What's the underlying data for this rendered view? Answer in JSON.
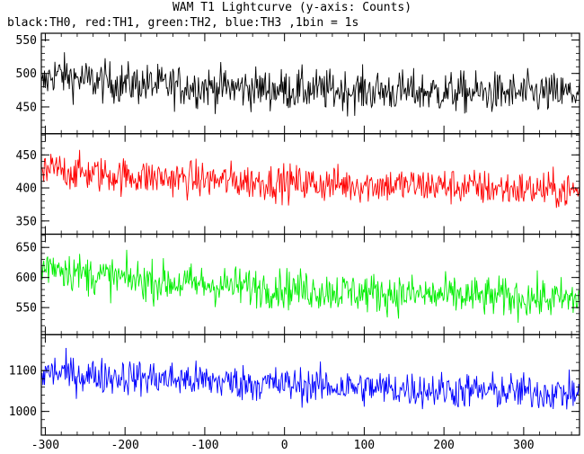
{
  "chart_data": {
    "type": "line",
    "title": "WAM T1 Lightcurve (y-axis: Counts)",
    "subtitle": "black:TH0, red:TH1, green:TH2, blue:TH3 ,1bin = 1s",
    "xlabel": "",
    "xlim": [
      -305,
      370
    ],
    "xticks": [
      -300,
      -200,
      -100,
      0,
      100,
      200,
      300
    ],
    "grid": false,
    "series": [
      {
        "name": "TH0",
        "color": "#000000",
        "ylim": [
          410,
          560
        ],
        "yticks": [
          450,
          500,
          550
        ],
        "x": [
          -305,
          -290,
          -270,
          -250,
          -200,
          -150,
          -100,
          -50,
          0,
          50,
          100,
          150,
          200,
          250,
          300,
          350,
          370
        ],
        "mean": [
          480,
          500,
          495,
          490,
          485,
          482,
          480,
          478,
          476,
          475,
          474,
          473,
          472,
          471,
          470,
          470,
          470
        ],
        "noise": 28
      },
      {
        "name": "TH1",
        "color": "#ff0000",
        "ylim": [
          330,
          482
        ],
        "yticks": [
          350,
          400,
          450
        ],
        "x": [
          -305,
          -290,
          -270,
          -250,
          -200,
          -150,
          -100,
          -50,
          0,
          50,
          100,
          150,
          200,
          250,
          300,
          350,
          370
        ],
        "mean": [
          420,
          428,
          425,
          422,
          418,
          415,
          412,
          410,
          408,
          406,
          405,
          404,
          403,
          400,
          398,
          396,
          395
        ],
        "noise": 25
      },
      {
        "name": "TH2",
        "color": "#00ee00",
        "ylim": [
          505,
          672
        ],
        "yticks": [
          550,
          600,
          650
        ],
        "x": [
          -305,
          -290,
          -270,
          -250,
          -200,
          -150,
          -100,
          -50,
          0,
          50,
          100,
          150,
          200,
          250,
          300,
          350,
          370
        ],
        "mean": [
          615,
          622,
          612,
          605,
          598,
          592,
          588,
          585,
          582,
          578,
          575,
          572,
          570,
          568,
          566,
          564,
          563
        ],
        "noise": 30
      },
      {
        "name": "TH3",
        "color": "#0000ff",
        "ylim": [
          942,
          1188
        ],
        "yticks": [
          1000,
          1100
        ],
        "x": [
          -305,
          -290,
          -270,
          -250,
          -200,
          -150,
          -100,
          -50,
          0,
          50,
          100,
          150,
          200,
          250,
          300,
          350,
          370
        ],
        "mean": [
          1090,
          1098,
          1092,
          1088,
          1085,
          1080,
          1075,
          1070,
          1066,
          1062,
          1058,
          1055,
          1052,
          1050,
          1048,
          1045,
          1044
        ],
        "noise": 40
      }
    ]
  }
}
